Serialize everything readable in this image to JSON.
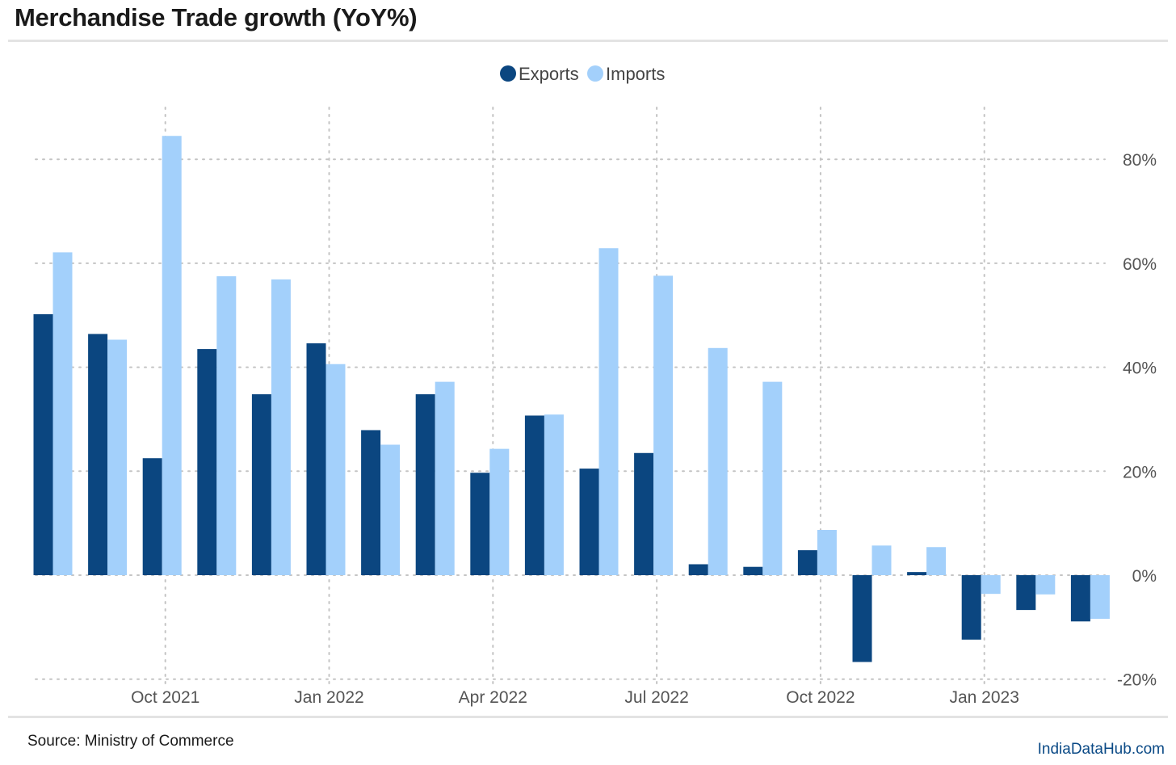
{
  "header": {
    "title": "Merchandise Trade growth (YoY%)"
  },
  "footer": {
    "source": "Source: Ministry of Commerce",
    "brand": "IndiaDataHub.com"
  },
  "colors": {
    "exports": "#0b4680",
    "imports": "#a3d0fb",
    "grid": "#c4c4c4",
    "axis_text": "#555555",
    "brand": "#0b4a86"
  },
  "chart_data": {
    "type": "bar",
    "title": "Merchandise Trade growth (YoY%)",
    "xlabel": "",
    "ylabel": "",
    "ylim": [
      -20,
      90
    ],
    "y_ticks": [
      -20,
      0,
      20,
      40,
      60,
      80
    ],
    "y_tick_labels": [
      "-20%",
      "0%",
      "20%",
      "40%",
      "60%",
      "80%"
    ],
    "y_axis_side": "right",
    "grid": true,
    "legend": "top-center",
    "x_tick_labels": [
      "Oct 2021",
      "Jan 2022",
      "Apr 2022",
      "Jul 2022",
      "Oct 2022",
      "Jan 2023"
    ],
    "x_tick_months": [
      "2021-10",
      "2022-01",
      "2022-04",
      "2022-07",
      "2022-10",
      "2023-01"
    ],
    "categories": [
      "2021-08",
      "2021-09",
      "2021-10",
      "2021-11",
      "2021-12",
      "2022-01",
      "2022-02",
      "2022-03",
      "2022-04",
      "2022-05",
      "2022-06",
      "2022-07",
      "2022-08",
      "2022-09",
      "2022-10",
      "2022-11",
      "2022-12",
      "2023-01",
      "2023-02",
      "2023-03"
    ],
    "series": [
      {
        "name": "Exports",
        "values": [
          50.2,
          46.4,
          22.5,
          43.5,
          34.8,
          44.6,
          27.9,
          34.8,
          19.7,
          30.7,
          20.5,
          23.5,
          2.1,
          1.6,
          4.8,
          -16.7,
          0.6,
          -12.4,
          -6.7,
          -8.9
        ]
      },
      {
        "name": "Imports",
        "values": [
          62.1,
          45.3,
          84.5,
          57.5,
          56.9,
          40.6,
          25.1,
          37.2,
          24.3,
          30.9,
          62.9,
          57.6,
          43.7,
          37.2,
          8.7,
          5.7,
          5.4,
          -3.6,
          -3.7,
          -8.4
        ]
      }
    ]
  }
}
